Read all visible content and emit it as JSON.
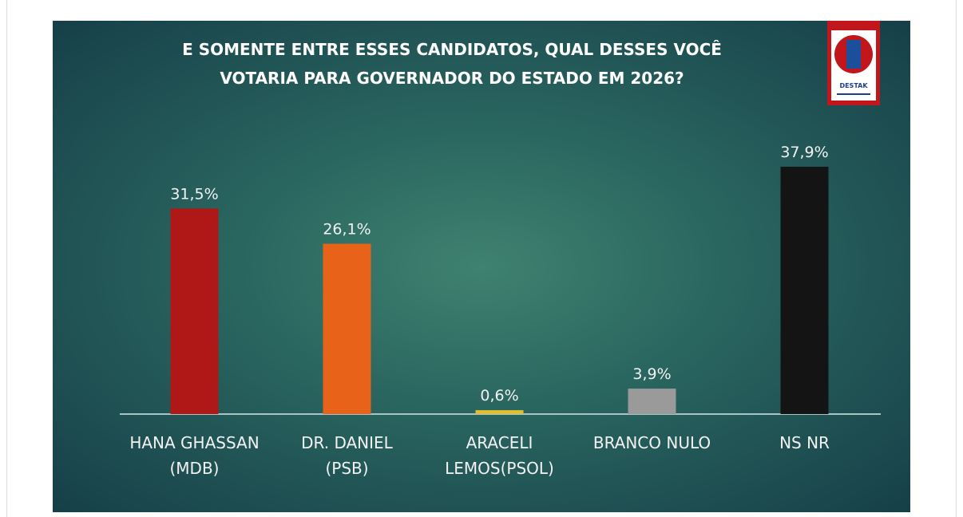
{
  "chart_data": {
    "type": "bar",
    "title": "E SOMENTE ENTRE ESSES CANDIDATOS, QUAL DESSES VOCÊ\nVOTARIA PARA GOVERNADOR DO ESTADO EM 2026?",
    "logo": "DESTAK",
    "categories": [
      "HANA GHASSAN\n(MDB)",
      "DR. DANIEL\n(PSB)",
      "ARACELI\nLEMOS(PSOL)",
      "BRANCO NULO",
      "NS NR"
    ],
    "values": [
      31.5,
      26.1,
      0.6,
      3.9,
      37.9
    ],
    "value_labels": [
      "31,5%",
      "26,1%",
      "0,6%",
      "3,9%",
      "37,9%"
    ],
    "colors": [
      "#b01818",
      "#e8621a",
      "#e0c030",
      "#9a9a9a",
      "#141414"
    ]
  }
}
